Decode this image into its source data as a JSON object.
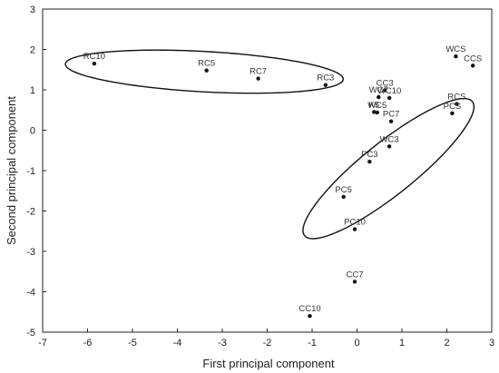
{
  "chart_data": {
    "type": "scatter",
    "xlabel": "First principal component",
    "ylabel": "Second principal component",
    "xlim": [
      -7,
      3
    ],
    "ylim": [
      -5,
      3
    ],
    "x_ticks": [
      "-7",
      "-6",
      "-5",
      "-4",
      "-3",
      "-2",
      "-1",
      "0",
      "1",
      "2",
      "3"
    ],
    "y_ticks": [
      "3",
      "2",
      "1",
      "0",
      "-1",
      "-2",
      "-3",
      "-4",
      "-5"
    ],
    "grid": false,
    "points": [
      {
        "label": "RC10",
        "x": -5.85,
        "y": 1.65
      },
      {
        "label": "RC5",
        "x": -3.35,
        "y": 1.48
      },
      {
        "label": "RC7",
        "x": -2.2,
        "y": 1.28
      },
      {
        "label": "RC3",
        "x": -0.7,
        "y": 1.12
      },
      {
        "label": "CC3",
        "x": 0.62,
        "y": 0.99
      },
      {
        "label": "WC7",
        "x": 0.48,
        "y": 0.82
      },
      {
        "label": "WC10",
        "x": 0.72,
        "y": 0.8
      },
      {
        "label": "WC5",
        "x": 0.45,
        "y": 0.44
      },
      {
        "label": "K5",
        "x": 0.38,
        "y": 0.45
      },
      {
        "label": "PC7",
        "x": 0.76,
        "y": 0.22
      },
      {
        "label": "WC3",
        "x": 0.72,
        "y": -0.4
      },
      {
        "label": "PC3",
        "x": 0.28,
        "y": -0.78
      },
      {
        "label": "PC5",
        "x": -0.3,
        "y": -1.65
      },
      {
        "label": "PC10",
        "x": -0.05,
        "y": -2.45
      },
      {
        "label": "CC7",
        "x": -0.05,
        "y": -3.75
      },
      {
        "label": "CC10",
        "x": -1.05,
        "y": -4.6
      },
      {
        "label": "WCS",
        "x": 2.2,
        "y": 1.83
      },
      {
        "label": "CCS",
        "x": 2.58,
        "y": 1.6
      },
      {
        "label": "RCS",
        "x": 2.22,
        "y": 0.65
      },
      {
        "label": "PCS",
        "x": 2.12,
        "y": 0.42
      }
    ],
    "ellipses": [
      {
        "cx": -3.4,
        "cy": 1.45,
        "rx": 3.1,
        "ry": 0.5,
        "angle": -3.5
      },
      {
        "cx": 0.7,
        "cy": -0.95,
        "rx": 2.5,
        "ry": 0.62,
        "angle": 42
      }
    ]
  }
}
